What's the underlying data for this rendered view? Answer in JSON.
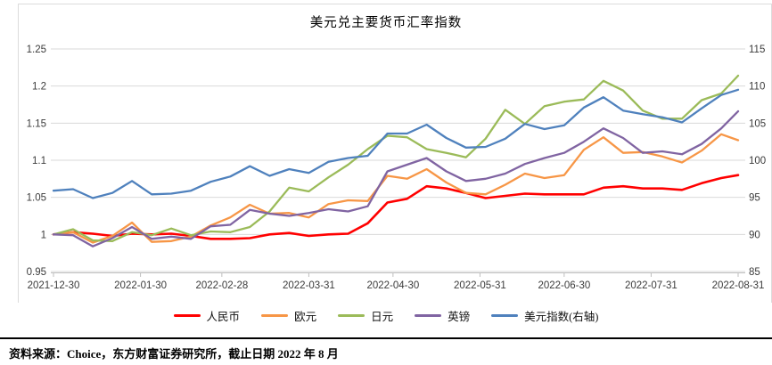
{
  "title": "美元兑主要货币汇率指数",
  "footer": {
    "source": "资料来源：Choice，东方财富证券研究所，截止日期 2022 年 8 月"
  },
  "chart_data": {
    "type": "line",
    "title": "美元兑主要货币汇率指数",
    "grid": "horizontal",
    "legend_position": "bottom",
    "y_left": {
      "min": 0.95,
      "max": 1.25,
      "ticks": [
        "1.25",
        "1.2",
        "1.15",
        "1.1",
        "1.05",
        "1",
        "0.95"
      ]
    },
    "y_right": {
      "min": 85,
      "max": 115,
      "ticks": [
        "115",
        "110",
        "105",
        "100",
        "95",
        "90",
        "85"
      ]
    },
    "x_ticks": [
      {
        "label": "2021-12-30",
        "day": 0
      },
      {
        "label": "2022-01-30",
        "day": 31
      },
      {
        "label": "2022-02-28",
        "day": 60
      },
      {
        "label": "2022-03-31",
        "day": 91
      },
      {
        "label": "2022-04-30",
        "day": 121
      },
      {
        "label": "2022-05-31",
        "day": 152
      },
      {
        "label": "2022-06-30",
        "day": 182
      },
      {
        "label": "2022-07-31",
        "day": 213
      },
      {
        "label": "2022-08-31",
        "day": 244
      }
    ],
    "x_days": [
      0,
      7,
      14,
      21,
      28,
      35,
      42,
      49,
      56,
      63,
      70,
      77,
      84,
      91,
      98,
      105,
      112,
      119,
      126,
      133,
      140,
      147,
      154,
      161,
      168,
      175,
      182,
      189,
      196,
      203,
      210,
      217,
      224,
      231,
      238,
      244
    ],
    "x_dates": [
      "2021-12-30",
      "2022-01-06",
      "2022-01-13",
      "2022-01-20",
      "2022-01-27",
      "2022-02-03",
      "2022-02-10",
      "2022-02-17",
      "2022-02-24",
      "2022-03-03",
      "2022-03-10",
      "2022-03-17",
      "2022-03-24",
      "2022-03-31",
      "2022-04-07",
      "2022-04-14",
      "2022-04-21",
      "2022-04-28",
      "2022-05-05",
      "2022-05-12",
      "2022-05-19",
      "2022-05-26",
      "2022-06-02",
      "2022-06-09",
      "2022-06-16",
      "2022-06-23",
      "2022-06-30",
      "2022-07-07",
      "2022-07-14",
      "2022-07-21",
      "2022-07-28",
      "2022-08-04",
      "2022-08-11",
      "2022-08-18",
      "2022-08-25",
      "2022-08-31"
    ],
    "series": [
      {
        "id": "cny",
        "name": "人民币",
        "axis": "left",
        "color": "#FF0000",
        "values": [
          1.0,
          1.003,
          1.001,
          0.998,
          1.001,
          1.0,
          1.001,
          0.998,
          0.994,
          0.994,
          0.995,
          1.0,
          1.002,
          0.998,
          1.0,
          1.001,
          1.015,
          1.043,
          1.048,
          1.065,
          1.062,
          1.056,
          1.049,
          1.052,
          1.055,
          1.054,
          1.054,
          1.054,
          1.063,
          1.065,
          1.062,
          1.062,
          1.06,
          1.069,
          1.076,
          1.08
        ]
      },
      {
        "id": "eur",
        "name": "欧元",
        "axis": "left",
        "color": "#F79646",
        "values": [
          1.0,
          1.003,
          0.989,
          0.998,
          1.016,
          0.99,
          0.991,
          0.997,
          1.012,
          1.023,
          1.04,
          1.028,
          1.029,
          1.023,
          1.041,
          1.046,
          1.045,
          1.079,
          1.075,
          1.088,
          1.07,
          1.056,
          1.054,
          1.067,
          1.082,
          1.076,
          1.08,
          1.114,
          1.131,
          1.11,
          1.111,
          1.105,
          1.097,
          1.113,
          1.135,
          1.127
        ]
      },
      {
        "id": "jpy",
        "name": "日元",
        "axis": "left",
        "color": "#9BBB59",
        "values": [
          1.0,
          1.007,
          0.992,
          0.991,
          1.003,
          0.999,
          1.008,
          0.999,
          1.004,
          1.003,
          1.01,
          1.031,
          1.063,
          1.058,
          1.077,
          1.094,
          1.115,
          1.133,
          1.131,
          1.115,
          1.11,
          1.104,
          1.129,
          1.168,
          1.149,
          1.173,
          1.179,
          1.182,
          1.207,
          1.194,
          1.167,
          1.156,
          1.156,
          1.181,
          1.19,
          1.214
        ]
      },
      {
        "id": "gbp",
        "name": "英镑",
        "axis": "left",
        "color": "#8064A2",
        "values": [
          1.0,
          0.999,
          0.984,
          0.995,
          1.01,
          0.994,
          0.997,
          0.994,
          1.011,
          1.013,
          1.033,
          1.028,
          1.025,
          1.029,
          1.034,
          1.031,
          1.038,
          1.085,
          1.094,
          1.103,
          1.085,
          1.072,
          1.075,
          1.082,
          1.095,
          1.103,
          1.11,
          1.125,
          1.143,
          1.13,
          1.11,
          1.112,
          1.108,
          1.122,
          1.143,
          1.166
        ]
      },
      {
        "id": "usdx",
        "name": "美元指数(右轴)",
        "axis": "right",
        "color": "#4F81BD",
        "values": [
          95.9,
          96.1,
          94.9,
          95.6,
          97.2,
          95.4,
          95.5,
          95.9,
          97.1,
          97.8,
          99.2,
          97.9,
          98.8,
          98.3,
          99.8,
          100.3,
          100.6,
          103.6,
          103.6,
          104.8,
          103.0,
          101.7,
          101.8,
          102.9,
          104.9,
          104.2,
          104.7,
          107.1,
          108.5,
          106.7,
          106.2,
          105.8,
          105.1,
          107.0,
          108.8,
          109.5
        ]
      }
    ]
  }
}
